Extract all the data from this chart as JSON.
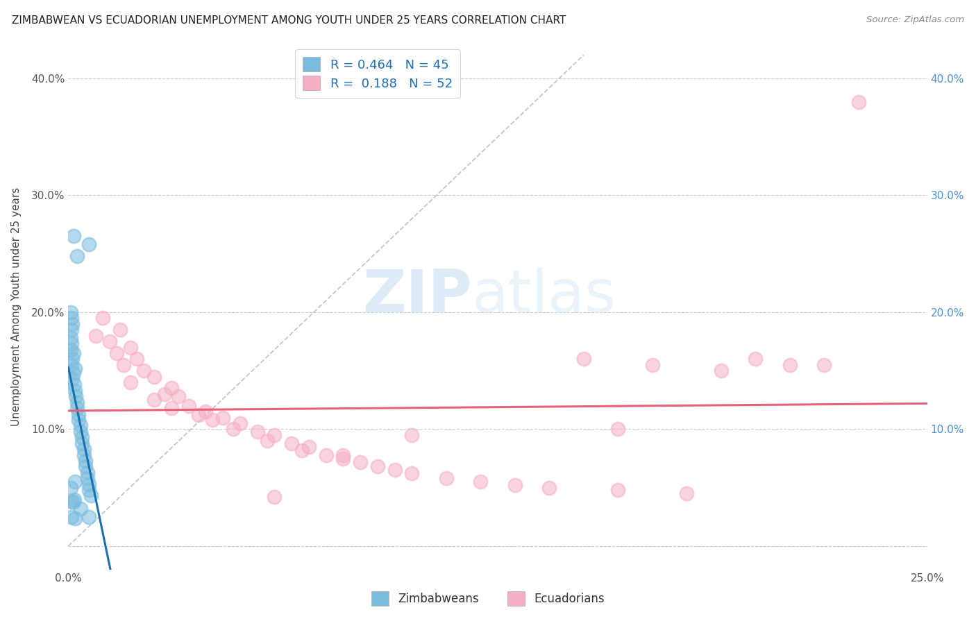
{
  "title": "ZIMBABWEAN VS ECUADORIAN UNEMPLOYMENT AMONG YOUTH UNDER 25 YEARS CORRELATION CHART",
  "source": "Source: ZipAtlas.com",
  "ylabel": "Unemployment Among Youth under 25 years",
  "xlim": [
    0.0,
    0.25
  ],
  "ylim": [
    -0.02,
    0.43
  ],
  "xticks": [
    0.0,
    0.05,
    0.1,
    0.15,
    0.2,
    0.25
  ],
  "yticks": [
    0.0,
    0.1,
    0.2,
    0.3,
    0.4
  ],
  "xtick_labels_show": [
    "0.0%",
    "25.0%"
  ],
  "ytick_labels_show": [
    "10.0%",
    "20.0%",
    "30.0%",
    "40.0%"
  ],
  "zim_color": "#7bbcde",
  "ecu_color": "#f5afc3",
  "zim_line_color": "#1a6faf",
  "ecu_line_color": "#e8607a",
  "ref_line_color": "#b0b8c8",
  "background_color": "#ffffff",
  "grid_color": "#cccccc",
  "watermark_zip": "ZIP",
  "watermark_atlas": "atlas",
  "legend_zim_r": "0.464",
  "legend_zim_n": "45",
  "legend_ecu_r": "0.188",
  "legend_ecu_n": "52",
  "zim_points": [
    [
      0.0008,
      0.2
    ],
    [
      0.001,
      0.195
    ],
    [
      0.0012,
      0.19
    ],
    [
      0.001,
      0.185
    ],
    [
      0.0008,
      0.178
    ],
    [
      0.0009,
      0.173
    ],
    [
      0.0007,
      0.168
    ],
    [
      0.0015,
      0.165
    ],
    [
      0.0012,
      0.16
    ],
    [
      0.001,
      0.155
    ],
    [
      0.002,
      0.152
    ],
    [
      0.0015,
      0.148
    ],
    [
      0.0012,
      0.143
    ],
    [
      0.0018,
      0.138
    ],
    [
      0.002,
      0.133
    ],
    [
      0.0022,
      0.128
    ],
    [
      0.0025,
      0.123
    ],
    [
      0.0025,
      0.118
    ],
    [
      0.003,
      0.113
    ],
    [
      0.003,
      0.108
    ],
    [
      0.0035,
      0.103
    ],
    [
      0.0035,
      0.098
    ],
    [
      0.004,
      0.093
    ],
    [
      0.004,
      0.088
    ],
    [
      0.0045,
      0.083
    ],
    [
      0.0045,
      0.078
    ],
    [
      0.005,
      0.073
    ],
    [
      0.005,
      0.068
    ],
    [
      0.0055,
      0.063
    ],
    [
      0.0055,
      0.058
    ],
    [
      0.006,
      0.053
    ],
    [
      0.006,
      0.048
    ],
    [
      0.0065,
      0.043
    ],
    [
      0.0035,
      0.032
    ],
    [
      0.001,
      0.025
    ],
    [
      0.0015,
      0.038
    ],
    [
      0.002,
      0.055
    ],
    [
      0.0025,
      0.248
    ],
    [
      0.006,
      0.258
    ],
    [
      0.0015,
      0.265
    ],
    [
      0.0008,
      0.05
    ],
    [
      0.001,
      0.038
    ],
    [
      0.002,
      0.024
    ],
    [
      0.006,
      0.025
    ],
    [
      0.0018,
      0.04
    ]
  ],
  "ecu_points": [
    [
      0.01,
      0.195
    ],
    [
      0.015,
      0.185
    ],
    [
      0.008,
      0.18
    ],
    [
      0.012,
      0.175
    ],
    [
      0.018,
      0.17
    ],
    [
      0.014,
      0.165
    ],
    [
      0.02,
      0.16
    ],
    [
      0.016,
      0.155
    ],
    [
      0.022,
      0.15
    ],
    [
      0.025,
      0.145
    ],
    [
      0.018,
      0.14
    ],
    [
      0.03,
      0.135
    ],
    [
      0.028,
      0.13
    ],
    [
      0.032,
      0.128
    ],
    [
      0.025,
      0.125
    ],
    [
      0.035,
      0.12
    ],
    [
      0.03,
      0.118
    ],
    [
      0.04,
      0.115
    ],
    [
      0.038,
      0.112
    ],
    [
      0.045,
      0.11
    ],
    [
      0.042,
      0.108
    ],
    [
      0.05,
      0.105
    ],
    [
      0.048,
      0.1
    ],
    [
      0.055,
      0.098
    ],
    [
      0.06,
      0.095
    ],
    [
      0.058,
      0.09
    ],
    [
      0.065,
      0.088
    ],
    [
      0.07,
      0.085
    ],
    [
      0.068,
      0.082
    ],
    [
      0.075,
      0.078
    ],
    [
      0.08,
      0.075
    ],
    [
      0.085,
      0.072
    ],
    [
      0.09,
      0.068
    ],
    [
      0.095,
      0.065
    ],
    [
      0.1,
      0.062
    ],
    [
      0.11,
      0.058
    ],
    [
      0.12,
      0.055
    ],
    [
      0.13,
      0.052
    ],
    [
      0.14,
      0.05
    ],
    [
      0.16,
      0.048
    ],
    [
      0.18,
      0.045
    ],
    [
      0.15,
      0.16
    ],
    [
      0.17,
      0.155
    ],
    [
      0.19,
      0.15
    ],
    [
      0.2,
      0.16
    ],
    [
      0.21,
      0.155
    ],
    [
      0.22,
      0.155
    ],
    [
      0.1,
      0.095
    ],
    [
      0.08,
      0.078
    ],
    [
      0.16,
      0.1
    ],
    [
      0.23,
      0.38
    ],
    [
      0.06,
      0.042
    ]
  ]
}
